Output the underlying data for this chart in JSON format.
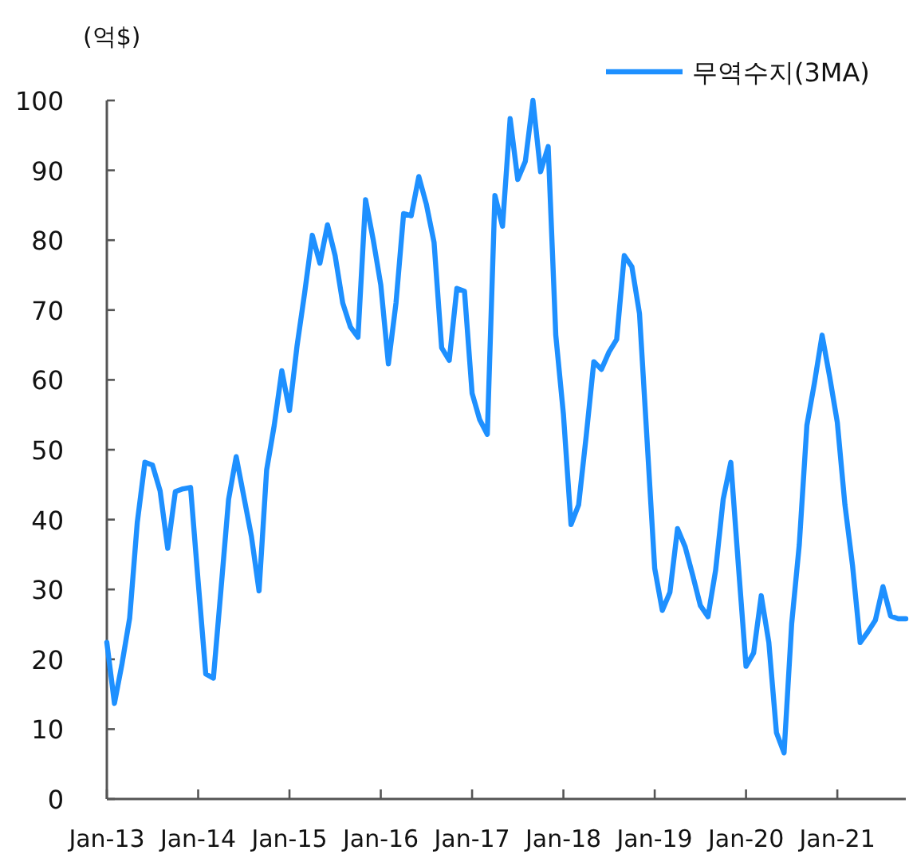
{
  "chart_data": {
    "type": "line",
    "ylabel": "(억$)",
    "legend": "top right",
    "grid": false,
    "marker": "none",
    "line_style": "solid",
    "x": [
      "2013-01",
      "2013-02",
      "2013-03",
      "2013-04",
      "2013-05",
      "2013-06",
      "2013-07",
      "2013-08",
      "2013-09",
      "2013-10",
      "2013-11",
      "2013-12",
      "2014-01",
      "2014-02",
      "2014-03",
      "2014-04",
      "2014-05",
      "2014-06",
      "2014-07",
      "2014-08",
      "2014-09",
      "2014-10",
      "2014-11",
      "2014-12",
      "2015-01",
      "2015-02",
      "2015-03",
      "2015-04",
      "2015-05",
      "2015-06",
      "2015-07",
      "2015-08",
      "2015-09",
      "2015-10",
      "2015-11",
      "2015-12",
      "2016-01",
      "2016-02",
      "2016-03",
      "2016-04",
      "2016-05",
      "2016-06",
      "2016-07",
      "2016-08",
      "2016-09",
      "2016-10",
      "2016-11",
      "2016-12",
      "2017-01",
      "2017-02",
      "2017-03",
      "2017-04",
      "2017-05",
      "2017-06",
      "2017-07",
      "2017-08",
      "2017-09",
      "2017-10",
      "2017-11",
      "2017-12",
      "2018-01",
      "2018-02",
      "2018-03",
      "2018-04",
      "2018-05",
      "2018-06",
      "2018-07",
      "2018-08",
      "2018-09",
      "2018-10",
      "2018-11",
      "2018-12",
      "2019-01",
      "2019-02",
      "2019-03",
      "2019-04",
      "2019-05",
      "2019-06",
      "2019-07",
      "2019-08",
      "2019-09",
      "2019-10",
      "2019-11",
      "2019-12",
      "2020-01",
      "2020-02",
      "2020-03",
      "2020-04",
      "2020-05",
      "2020-06",
      "2020-07",
      "2020-08",
      "2020-09",
      "2020-10",
      "2020-11",
      "2020-12",
      "2021-01",
      "2021-02",
      "2021-03",
      "2021-04",
      "2021-05",
      "2021-06",
      "2021-07",
      "2021-08",
      "2021-09",
      "2021-10"
    ],
    "series": [
      {
        "name": "무역수지(3MA)",
        "color": "#1e90ff",
        "values": [
          22.4,
          13.7,
          19.4,
          25.9,
          39.6,
          48.2,
          47.8,
          44.1,
          35.9,
          44.0,
          44.4,
          44.6,
          31.1,
          17.9,
          17.3,
          30.0,
          42.9,
          49.0,
          43.3,
          37.6,
          29.8,
          47.1,
          53.5,
          61.3,
          55.6,
          64.9,
          72.5,
          80.7,
          76.7,
          82.2,
          77.8,
          71.0,
          67.6,
          66.1,
          85.8,
          80.1,
          73.6,
          62.3,
          71.0,
          83.8,
          83.5,
          89.1,
          85.1,
          79.7,
          64.6,
          62.8,
          73.1,
          72.7,
          58.1,
          54.3,
          52.2,
          86.4,
          82.0,
          97.4,
          88.7,
          91.3,
          100,
          89.8,
          93.4,
          66.4,
          55.1,
          39.3,
          42.1,
          52.0,
          62.6,
          61.5,
          64.0,
          65.8,
          77.8,
          76.2,
          69.5,
          51.3,
          33.0,
          27.0,
          29.6,
          38.7,
          36.1,
          32.0,
          27.7,
          26.1,
          32.7,
          42.9,
          48.2,
          33.4,
          19.0,
          20.9,
          29.1,
          22.4,
          9.5,
          6.6,
          25.1,
          36.4,
          53.5,
          59.6,
          66.4,
          60.4,
          53.9,
          42.1,
          33.4,
          22.4,
          23.9,
          25.6,
          30.4,
          26.2,
          25.8,
          25.8
        ]
      }
    ],
    "xlim": [
      "2013-01",
      "2021-10"
    ],
    "xticks": [
      {
        "value": "2013-01",
        "label": "Jan-13"
      },
      {
        "value": "2014-01",
        "label": "Jan-14"
      },
      {
        "value": "2015-01",
        "label": "Jan-15"
      },
      {
        "value": "2016-01",
        "label": "Jan-16"
      },
      {
        "value": "2017-01",
        "label": "Jan-17"
      },
      {
        "value": "2018-01",
        "label": "Jan-18"
      },
      {
        "value": "2019-01",
        "label": "Jan-19"
      },
      {
        "value": "2020-01",
        "label": "Jan-20"
      },
      {
        "value": "2021-01",
        "label": "Jan-21"
      }
    ],
    "ylim": [
      0,
      100
    ],
    "yticks": [
      0,
      10,
      20,
      30,
      40,
      50,
      60,
      70,
      80,
      90,
      100
    ]
  }
}
